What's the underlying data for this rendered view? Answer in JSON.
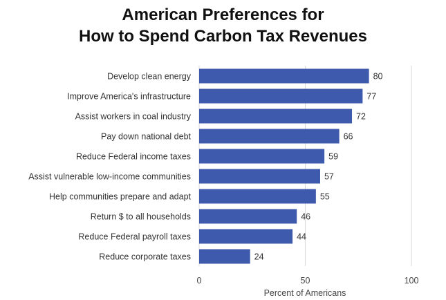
{
  "chart_data": {
    "type": "bar",
    "orientation": "horizontal",
    "title": "American Preferences for How to Spend Carbon Tax Revenues",
    "title_lines": [
      "American Preferences for",
      "How to Spend Carbon Tax Revenues"
    ],
    "categories": [
      "Develop clean energy",
      "Improve America's infrastructure",
      "Assist workers in coal industry",
      "Pay down national debt",
      "Reduce Federal income taxes",
      "Assist vulnerable low-income communities",
      "Help communities prepare and adapt",
      "Return $ to all households",
      "Reduce Federal payroll taxes",
      "Reduce corporate taxes"
    ],
    "values": [
      80,
      77,
      72,
      66,
      59,
      57,
      55,
      46,
      44,
      24
    ],
    "xlabel": "Percent of Americans",
    "ylabel": "",
    "xlim": [
      0,
      100
    ],
    "xticks": [
      0,
      50,
      100
    ],
    "grid": true,
    "legend": "none",
    "bar_color": "#3d5aad",
    "grid_color": "#d9d9d9"
  }
}
